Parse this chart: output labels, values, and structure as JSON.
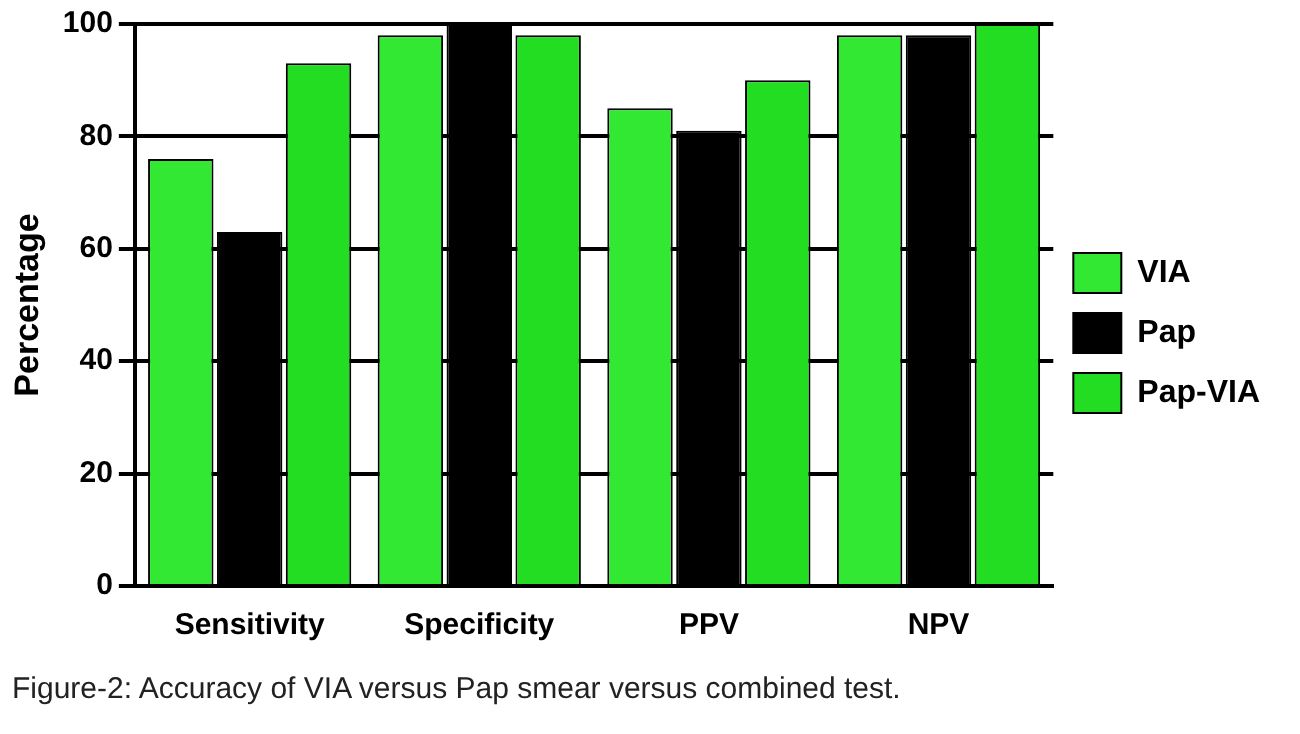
{
  "chart_data": {
    "type": "bar",
    "ylabel": "Percentage",
    "categories": [
      "Sensitivity",
      "Specificity",
      "PPV",
      "NPV"
    ],
    "series": [
      {
        "name": "VIA",
        "color": "#33e833",
        "values": [
          76,
          98,
          85,
          98
        ]
      },
      {
        "name": "Pap",
        "color": "#000000",
        "values": [
          63,
          100,
          81,
          98
        ]
      },
      {
        "name": "Pap-VIA",
        "color": "#22dd22",
        "values": [
          93,
          98,
          90,
          100
        ]
      }
    ],
    "ylim": [
      0,
      100
    ],
    "yticks": [
      0,
      20,
      40,
      60,
      80,
      100
    ],
    "grid": "y",
    "legend": "right",
    "annotations": [
      "Figure-2: Accuracy of VIA versus Pap smear versus combined test."
    ]
  }
}
